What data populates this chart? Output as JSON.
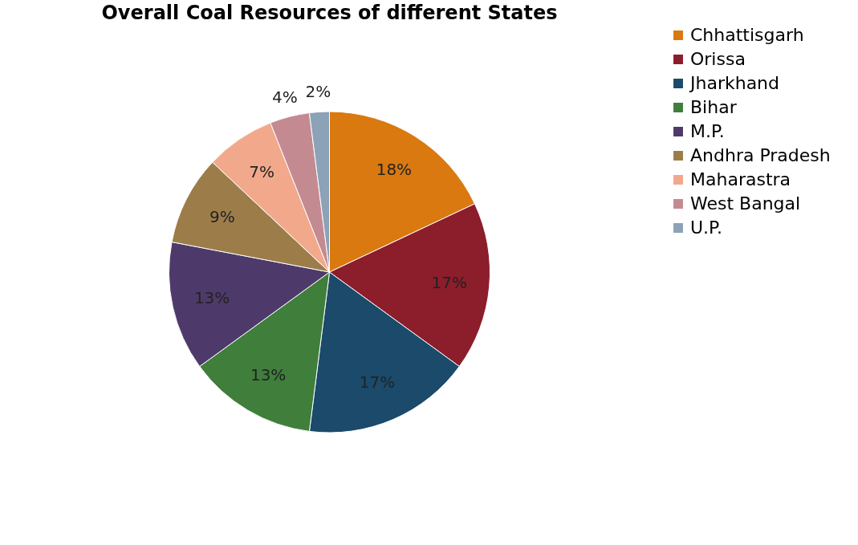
{
  "chart_data": {
    "type": "pie",
    "title": "Overall Coal Resources of different States",
    "categories": [
      "Chhattisgarh",
      "Orissa",
      "Jharkhand",
      "Bihar",
      "M.P.",
      "Andhra Pradesh",
      "Maharastra",
      "West Bangal",
      "U.P."
    ],
    "values": [
      18,
      17,
      17,
      13,
      13,
      9,
      7,
      4,
      2
    ],
    "value_labels": [
      "18%",
      "17%",
      "17%",
      "13%",
      "13%",
      "9%",
      "7%",
      "4%",
      "2%"
    ],
    "colors": [
      "#d9790f",
      "#8c1d2b",
      "#1b4a6b",
      "#3f7e3b",
      "#4e3a6a",
      "#9c7d4a",
      "#f2a98b",
      "#c48a92",
      "#8ca2b6"
    ],
    "legend": "right"
  }
}
